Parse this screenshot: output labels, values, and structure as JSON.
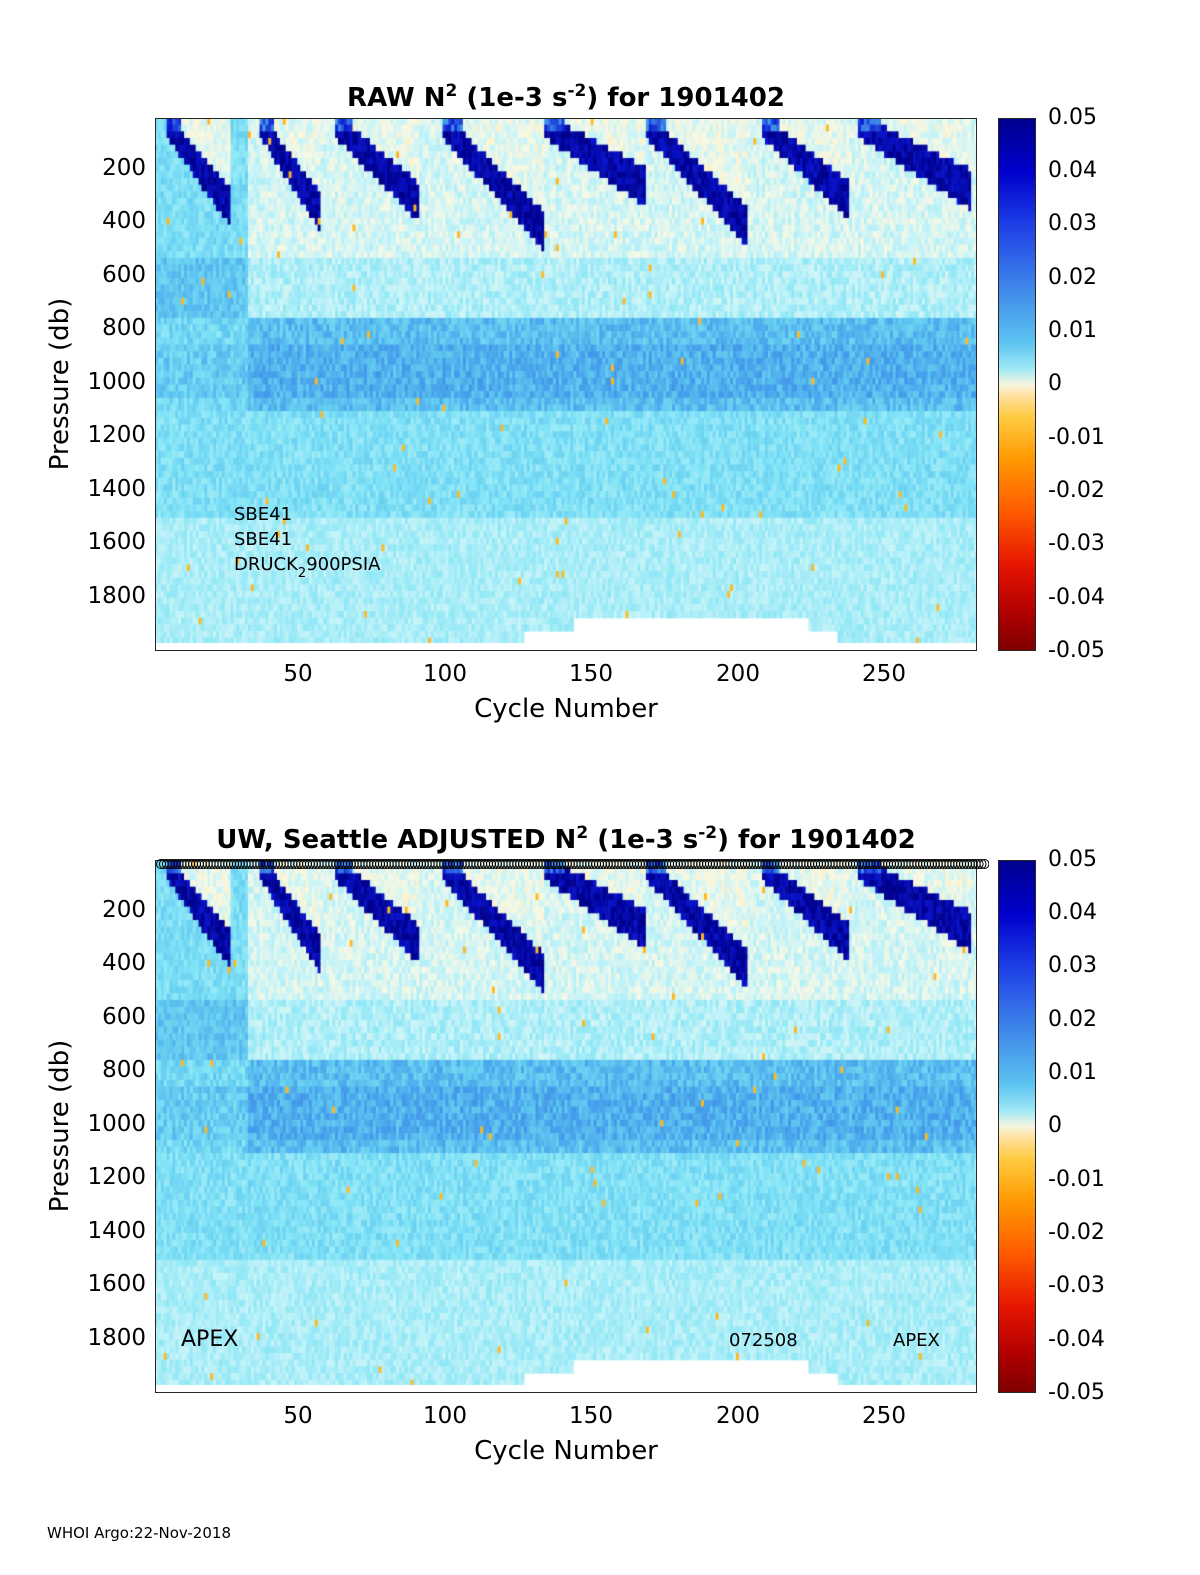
{
  "chart_data": [
    {
      "type": "heatmap",
      "title_pre": "RAW N",
      "title_sup1": "2",
      "title_mid": " (1e-3 s",
      "title_sup2": "-2",
      "title_post": ") for 1901402",
      "xlabel": "Cycle Number",
      "ylabel": "Pressure (db)",
      "xlim": [
        1,
        283
      ],
      "ylim": [
        2000,
        0
      ],
      "x_ticks": [
        "50",
        "100",
        "150",
        "200",
        "250"
      ],
      "y_ticks": [
        "200",
        "400",
        "600",
        "800",
        "1000",
        "1200",
        "1400",
        "1600",
        "1800"
      ],
      "colorbar_ticks": [
        "0.05",
        "0.04",
        "0.03",
        "0.02",
        "0.01",
        "0",
        "-0.01",
        "-0.02",
        "-0.03",
        "-0.04",
        "-0.05"
      ],
      "clim": [
        -0.05,
        0.05
      ],
      "colormap": "jet-like diverging (dark red → white near 0 → dark blue)",
      "annotations": [
        "SBE41",
        "SBE41",
        "DRUCK",
        "2",
        "900PSIA"
      ]
    },
    {
      "type": "heatmap",
      "title_pre": "UW, Seattle  ADJUSTED N",
      "title_sup1": "2",
      "title_mid": " (1e-3 s",
      "title_sup2": "-2",
      "title_post": ") for 1901402",
      "xlabel": "Cycle Number",
      "ylabel": "Pressure (db)",
      "xlim": [
        1,
        283
      ],
      "ylim": [
        2000,
        0
      ],
      "x_ticks": [
        "50",
        "100",
        "150",
        "200",
        "250"
      ],
      "y_ticks": [
        "200",
        "400",
        "600",
        "800",
        "1000",
        "1200",
        "1400",
        "1600",
        "1800"
      ],
      "colorbar_ticks": [
        "0.05",
        "0.04",
        "0.03",
        "0.02",
        "0.01",
        "0",
        "-0.01",
        "-0.02",
        "-0.03",
        "-0.04",
        "-0.05"
      ],
      "clim": [
        -0.05,
        0.05
      ],
      "colormap": "jet-like diverging (dark red → white near 0 → dark blue)",
      "annotations": [
        "APEX",
        "072508",
        "APEX"
      ]
    }
  ],
  "footer": "WHOI Argo:22-Nov-2018"
}
